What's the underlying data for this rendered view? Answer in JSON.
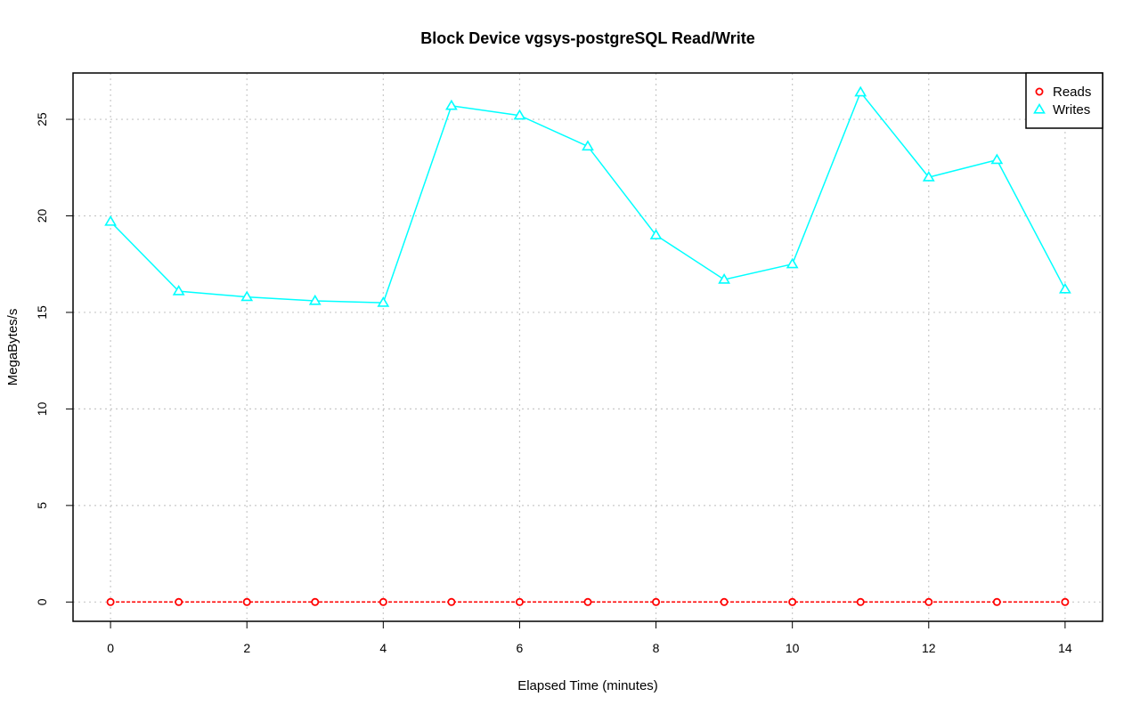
{
  "chart_data": {
    "type": "line",
    "title": "Block Device vgsys-postgreSQL Read/Write",
    "xlabel": "Elapsed Time (minutes)",
    "ylabel": "MegaBytes/s",
    "xlim": [
      -0.55,
      14.55
    ],
    "ylim": [
      -1.0,
      27.4
    ],
    "xticks": [
      0,
      2,
      4,
      6,
      8,
      10,
      12,
      14
    ],
    "yticks": [
      0,
      5,
      10,
      15,
      20,
      25
    ],
    "grid": true,
    "legend_position": "top-right",
    "x": [
      0,
      1,
      2,
      3,
      4,
      5,
      6,
      7,
      8,
      9,
      10,
      11,
      12,
      13,
      14
    ],
    "series": [
      {
        "name": "Reads",
        "color": "#ff0000",
        "marker": "circle",
        "line_style": "dashed",
        "values": [
          0,
          0,
          0,
          0,
          0,
          0,
          0,
          0,
          0,
          0,
          0,
          0,
          0,
          0,
          0
        ]
      },
      {
        "name": "Writes",
        "color": "#00ffff",
        "marker": "triangle",
        "line_style": "solid",
        "values": [
          19.7,
          16.1,
          15.8,
          15.6,
          15.5,
          25.7,
          25.2,
          23.6,
          19.0,
          16.7,
          17.5,
          26.4,
          22.0,
          22.9,
          16.2
        ]
      }
    ]
  }
}
